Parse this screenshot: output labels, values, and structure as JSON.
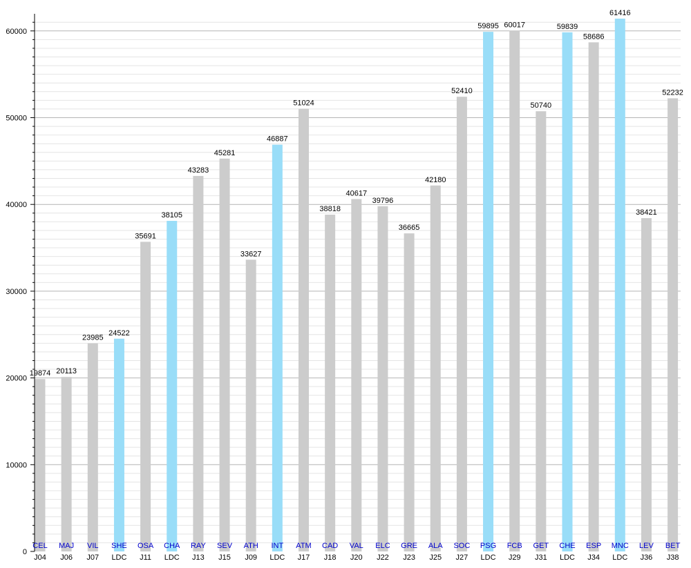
{
  "chart_data": {
    "type": "bar",
    "title": "",
    "xlabel": "",
    "ylabel": "",
    "ylim": [
      0,
      61416
    ],
    "yticks": [
      0,
      10000,
      20000,
      30000,
      40000,
      50000,
      60000
    ],
    "minor_tick_step": 1000,
    "grid": true,
    "categories": [
      {
        "opponent": "CEL",
        "round": "J04",
        "value": 19874,
        "cup": false
      },
      {
        "opponent": "MAJ",
        "round": "J06",
        "value": 20113,
        "cup": false
      },
      {
        "opponent": "VIL",
        "round": "J07",
        "value": 23985,
        "cup": false
      },
      {
        "opponent": "SHE",
        "round": "LDC",
        "value": 24522,
        "cup": true
      },
      {
        "opponent": "OSA",
        "round": "J11",
        "value": 35691,
        "cup": false
      },
      {
        "opponent": "CHA",
        "round": "LDC",
        "value": 38105,
        "cup": true
      },
      {
        "opponent": "RAY",
        "round": "J13",
        "value": 43283,
        "cup": false
      },
      {
        "opponent": "SEV",
        "round": "J15",
        "value": 45281,
        "cup": false
      },
      {
        "opponent": "ATH",
        "round": "J09",
        "value": 33627,
        "cup": false
      },
      {
        "opponent": "INT",
        "round": "LDC",
        "value": 46887,
        "cup": true
      },
      {
        "opponent": "ATM",
        "round": "J17",
        "value": 51024,
        "cup": false
      },
      {
        "opponent": "CAD",
        "round": "J18",
        "value": 38818,
        "cup": false
      },
      {
        "opponent": "VAL",
        "round": "J20",
        "value": 40617,
        "cup": false
      },
      {
        "opponent": "ELC",
        "round": "J22",
        "value": 39796,
        "cup": false
      },
      {
        "opponent": "GRE",
        "round": "J23",
        "value": 36665,
        "cup": false
      },
      {
        "opponent": "ALA",
        "round": "J25",
        "value": 42180,
        "cup": false
      },
      {
        "opponent": "SOC",
        "round": "J27",
        "value": 52410,
        "cup": false
      },
      {
        "opponent": "PSG",
        "round": "LDC",
        "value": 59895,
        "cup": true
      },
      {
        "opponent": "FCB",
        "round": "J29",
        "value": 60017,
        "cup": false
      },
      {
        "opponent": "GET",
        "round": "J31",
        "value": 50740,
        "cup": false
      },
      {
        "opponent": "CHE",
        "round": "LDC",
        "value": 59839,
        "cup": true
      },
      {
        "opponent": "ESP",
        "round": "J34",
        "value": 58686,
        "cup": false
      },
      {
        "opponent": "MNC",
        "round": "LDC",
        "value": 61416,
        "cup": true
      },
      {
        "opponent": "LEV",
        "round": "J36",
        "value": 38421,
        "cup": false
      },
      {
        "opponent": "BET",
        "round": "J38",
        "value": 52232,
        "cup": false
      }
    ]
  },
  "colors": {
    "league_bar": "#cccccc",
    "cup_bar": "#99ddf8",
    "opponent_label": "#0000cc",
    "round_label": "#000000",
    "value_label": "#000000",
    "major_grid": "#b4b4b4",
    "minor_grid": "#e4e4e4",
    "axis": "#000000"
  }
}
